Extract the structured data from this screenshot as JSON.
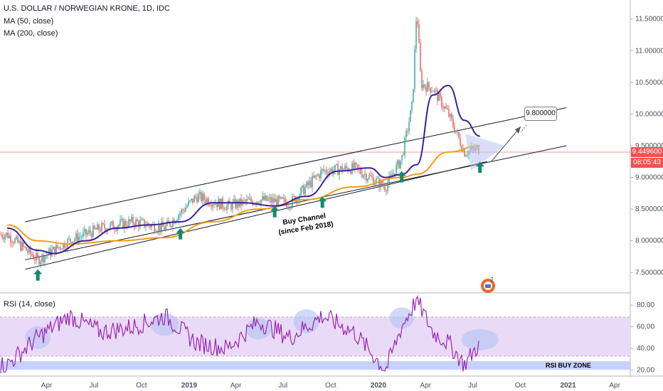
{
  "header": {
    "title": "U.S. DOLLAR / NORWEGIAN KRONE, 1D, IDC",
    "ma50_label": "MA (50, close)",
    "ma200_label": "MA (200, close)"
  },
  "price_badges": {
    "last_price": "9.449600",
    "countdown": "08:05:43"
  },
  "annotations": {
    "channel_line1": "Buy Channel",
    "channel_line2": "(since Feb 2018)",
    "target": "9.800000",
    "rsi_zone": "RSI BUY ZONE",
    "logo_badge": "2"
  },
  "rsi_panel": {
    "label": "RSI (14, close)"
  },
  "colors": {
    "price_up": "#26a69a",
    "price_down": "#ef5350",
    "ma50": "#3d1f9c",
    "ma200": "#f29c13",
    "rsi": "#9c27b0",
    "rsi_band": "#e6d5f7",
    "rsi_buy_zone": "#c9d4ff",
    "arrow": "#138a72",
    "highlight": "#b9c4f2",
    "last_price_badge": "#ef5350",
    "countdown_badge": "#ef5350"
  },
  "chart_data": [
    {
      "type": "line",
      "title": "U.S. DOLLAR / NORWEGIAN KRONE, 1D, IDC",
      "y_axis_ticks": [
        "11.500000",
        "11.000000",
        "10.500000",
        "10.000000",
        "9.500000",
        "9.000000",
        "8.500000",
        "8.000000",
        "7.500000"
      ],
      "y_axis_tick_values": [
        11.5,
        11.0,
        10.5,
        10.0,
        9.5,
        9.0,
        8.5,
        8.0,
        7.5
      ],
      "x_axis_ticks": [
        "Apr",
        "Jul",
        "Oct",
        "2019",
        "Apr",
        "Jul",
        "Oct",
        "2020",
        "Apr",
        "Jul",
        "Oct",
        "2021",
        "Apr"
      ],
      "ylim": [
        7.2,
        11.8
      ],
      "series": [
        {
          "name": "MA (50, close)",
          "x": [
            "2018-01",
            "2018-03",
            "2018-04",
            "2018-06",
            "2018-08",
            "2018-10",
            "2018-12",
            "2019-02",
            "2019-04",
            "2019-06",
            "2019-08",
            "2019-10",
            "2019-12",
            "2020-01",
            "2020-02",
            "2020-03",
            "2020-04",
            "2020-05",
            "2020-06",
            "2020-07"
          ],
          "values": [
            8.2,
            7.85,
            7.8,
            8.0,
            8.2,
            8.25,
            8.3,
            8.6,
            8.6,
            8.55,
            8.7,
            9.1,
            9.15,
            9.0,
            9.05,
            9.2,
            10.3,
            10.45,
            9.9,
            9.65
          ]
        },
        {
          "name": "MA (200, close)",
          "x": [
            "2018-01",
            "2018-03",
            "2018-05",
            "2018-08",
            "2018-11",
            "2019-02",
            "2019-05",
            "2019-08",
            "2019-11",
            "2020-02",
            "2020-03",
            "2020-05",
            "2020-07"
          ],
          "values": [
            8.25,
            8.0,
            7.95,
            8.0,
            8.05,
            8.3,
            8.5,
            8.65,
            8.85,
            9.0,
            9.05,
            9.4,
            9.5
          ]
        },
        {
          "name": "U.S. DOLLAR / NORWEGIAN KRONE",
          "x": [
            "2018-01",
            "2018-03",
            "2018-05",
            "2018-07",
            "2018-09",
            "2018-11",
            "2019-01",
            "2019-03",
            "2019-05",
            "2019-07",
            "2019-09",
            "2019-11",
            "2020-01",
            "2020-02",
            "2020-03",
            "2020-04",
            "2020-05",
            "2020-06",
            "2020-07"
          ],
          "values": [
            8.1,
            7.7,
            8.0,
            8.2,
            8.3,
            8.2,
            8.7,
            8.55,
            8.65,
            8.6,
            9.1,
            9.15,
            8.85,
            9.3,
            10.5,
            10.4,
            10.0,
            9.4,
            9.45
          ]
        }
      ]
    },
    {
      "type": "line",
      "title": "RSI (14, close)",
      "y_axis_ticks": [
        "80.00",
        "60.00",
        "40.00",
        "20.00"
      ],
      "y_axis_tick_values": [
        80,
        60,
        40,
        20
      ],
      "ylim": [
        15,
        90
      ],
      "series": [
        {
          "name": "RSI (14, close)",
          "x": [
            "2018-01",
            "2018-03",
            "2018-05",
            "2018-07",
            "2018-09",
            "2018-11",
            "2019-01",
            "2019-03",
            "2019-05",
            "2019-07",
            "2019-09",
            "2019-11",
            "2020-01",
            "2020-02",
            "2020-03",
            "2020-04",
            "2020-05",
            "2020-06",
            "2020-07"
          ],
          "values": [
            25,
            50,
            70,
            55,
            60,
            70,
            45,
            40,
            65,
            50,
            70,
            55,
            20,
            60,
            85,
            55,
            45,
            25,
            45
          ]
        }
      ]
    }
  ]
}
